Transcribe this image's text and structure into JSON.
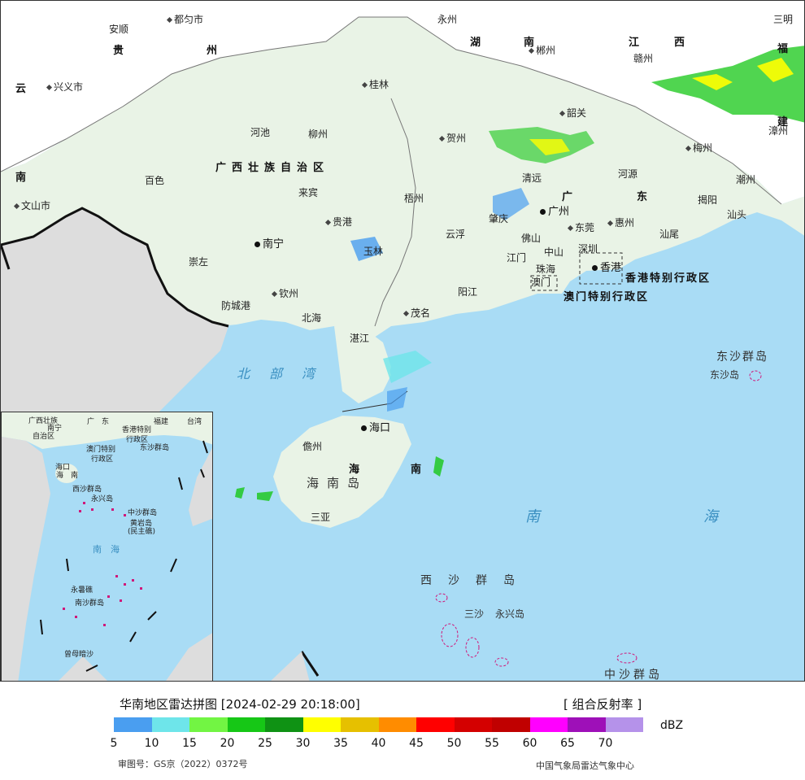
{
  "title": "华南地区雷达拼图 [2024-02-29 20:18:00]",
  "product": "[ 组合反射率 ]",
  "unit": "dBZ",
  "approval": "审图号：GS京（2022）0372号",
  "credit": "中国气象局雷达气象中心",
  "colors": {
    "sea": "#a9dcf5",
    "land_china": "#e9f3e6",
    "land_outside": "#dddddd",
    "land_north": "#ffffff"
  },
  "legend": {
    "colors": [
      "#4a9ef0",
      "#6ee5ea",
      "#72f543",
      "#16c716",
      "#0f9214",
      "#ffff00",
      "#e6c000",
      "#ff8c00",
      "#ff0000",
      "#d40000",
      "#c00000",
      "#ff00ff",
      "#9e10b8",
      "#b592ea"
    ],
    "ticks": [
      "5",
      "10",
      "15",
      "20",
      "25",
      "30",
      "35",
      "40",
      "45",
      "50",
      "55",
      "60",
      "65",
      "70"
    ]
  },
  "map": {
    "provinces": {
      "guangxi": "广西壮族自治区",
      "guangdong_a": "广",
      "guangdong_b": "东",
      "hainan": "海南岛",
      "hainan_prov_a": "海",
      "hainan_prov_b": "南",
      "guizhou_a": "贵",
      "guizhou_b": "州",
      "hunan_a": "湖",
      "hunan_b": "南",
      "jiangxi_a": "江",
      "jiangxi_b": "西",
      "fujian_a": "福",
      "fujian_b": "建",
      "yunnan_a": "云",
      "yunnan_b": "南"
    },
    "sars": {
      "hk": "香港特别行政区",
      "macau": "澳门特别行政区"
    },
    "seas": {
      "beibu": "北部湾",
      "south_china_sea_a": "南",
      "south_china_sea_b": "海"
    },
    "islands": {
      "dongsha_group": "东沙群岛",
      "dongsha": "东沙岛",
      "xisha": "西沙群岛",
      "sansha": "三沙",
      "yongxing": "永兴岛",
      "zhongsha": "中沙群岛"
    },
    "capitals": {
      "nanning": "南宁",
      "guangzhou": "广州",
      "haikou": "海口",
      "hongkong": "香港"
    },
    "cities": {
      "duyun": "都匀市",
      "anshun": "安顺",
      "xingyi": "兴义市",
      "wenshan": "文山市",
      "yongzhou": "永州",
      "chenzhou": "郴州",
      "ganzhou": "赣州",
      "sanming": "三明",
      "zhangzhou": "漳州",
      "meizhou": "梅州",
      "chaozhou": "潮州",
      "jieyang": "揭阳",
      "shantou": "汕头",
      "guilin": "桂林",
      "hechi": "河池",
      "liuzhou": "柳州",
      "hezhou": "贺州",
      "shaoguan": "韶关",
      "baise": "百色",
      "laibin": "来宾",
      "qingyuan": "清远",
      "heyuan": "河源",
      "wuzhou": "梧州",
      "guigang": "贵港",
      "zhaoqing": "肇庆",
      "dongguan": "东莞",
      "huizhou": "惠州",
      "shanwei": "汕尾",
      "yunfu": "云浮",
      "foshan": "佛山",
      "zhongshan": "中山",
      "shenzhen": "深圳",
      "chongzuo": "崇左",
      "yulin": "玉林",
      "jiangmen": "江门",
      "zhuhai": "珠海",
      "macau": "澳门",
      "qinzhou": "钦州",
      "fangchenggang": "防城港",
      "yangjiang": "阳江",
      "beihai": "北海",
      "maoming": "茂名",
      "zhanjiang": "湛江",
      "danzhou": "儋州",
      "sanya": "三亚"
    }
  },
  "inset": {
    "labels": {
      "guangxi": "广西壮族",
      "zizhiqu": "自治区",
      "guangdong": "广　东",
      "fujian": "福建",
      "taiwan": "台湾",
      "nanning": "南宁",
      "hongkong_sar_a": "香港特别",
      "hongkong_sar_b": "行政区",
      "macau_sar_a": "澳门特别",
      "macau_sar_b": "行政区",
      "dongsha": "东沙群岛",
      "haikou": "海口",
      "hainan": "海　南",
      "xisha": "西沙群岛",
      "yongxing": "永兴岛",
      "zhongsha": "中沙群岛",
      "huangyan_a": "黄岩岛",
      "huangyan_b": "(民主礁)",
      "nanhai": "南　海",
      "yongshu": "永暑礁",
      "nansha": "南沙群岛",
      "zengmu": "曾母暗沙"
    }
  }
}
